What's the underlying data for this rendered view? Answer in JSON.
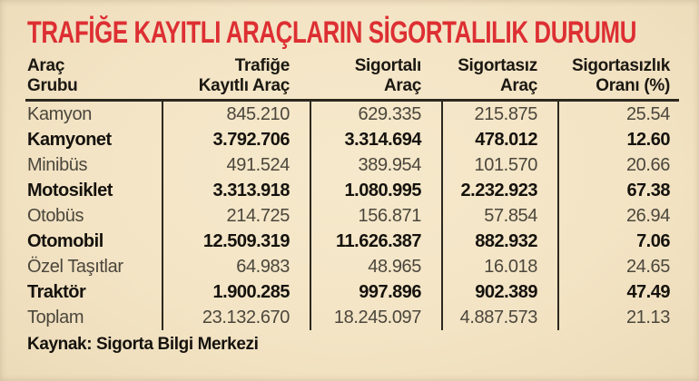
{
  "title": "TRAFİĞE KAYITLI ARAÇLARIN SİGORTALILIK DURUMU",
  "source": "Kaynak: Sigorta Bilgi Merkezi",
  "colors": {
    "background": "#f3e4c5",
    "title_red": "#dd2f33",
    "rule_dark": "#2c281f",
    "text_regular": "#4b463c",
    "text_strong": "#15120d"
  },
  "table": {
    "headers": [
      {
        "line1": "Araç",
        "line2": "Grubu"
      },
      {
        "line1": "Trafiğe",
        "line2": "Kayıtlı Araç"
      },
      {
        "line1": "Sigortalı",
        "line2": "Araç"
      },
      {
        "line1": "Sigortasız",
        "line2": "Araç"
      },
      {
        "line1": "Sigortasızlık",
        "line2": "Oranı (%)"
      }
    ],
    "rows": [
      {
        "group": "Kamyon",
        "registered": "845.210",
        "insured": "629.335",
        "uninsured": "215.875",
        "rate": "25.54",
        "bold": false
      },
      {
        "group": "Kamyonet",
        "registered": "3.792.706",
        "insured": "3.314.694",
        "uninsured": "478.012",
        "rate": "12.60",
        "bold": true
      },
      {
        "group": "Minibüs",
        "registered": "491.524",
        "insured": "389.954",
        "uninsured": "101.570",
        "rate": "20.66",
        "bold": false
      },
      {
        "group": "Motosiklet",
        "registered": "3.313.918",
        "insured": "1.080.995",
        "uninsured": "2.232.923",
        "rate": "67.38",
        "bold": true
      },
      {
        "group": "Otobüs",
        "registered": "214.725",
        "insured": "156.871",
        "uninsured": "57.854",
        "rate": "26.94",
        "bold": false
      },
      {
        "group": "Otomobil",
        "registered": "12.509.319",
        "insured": "11.626.387",
        "uninsured": "882.932",
        "rate": "7.06",
        "bold": true
      },
      {
        "group": "Özel Taşıtlar",
        "registered": "64.983",
        "insured": "48.965",
        "uninsured": "16.018",
        "rate": "24.65",
        "bold": false
      },
      {
        "group": "Traktör",
        "registered": "1.900.285",
        "insured": "997.896",
        "uninsured": "902.389",
        "rate": "47.49",
        "bold": true
      },
      {
        "group": "Toplam",
        "registered": "23.132.670",
        "insured": "18.245.097",
        "uninsured": "4.887.573",
        "rate": "21.13",
        "bold": false
      }
    ]
  },
  "chart_data": {
    "type": "table",
    "title": "TRAFİĞE KAYITLI ARAÇLARIN SİGORTALILIK DURUMU",
    "columns": [
      "Araç Grubu",
      "Trafiğe Kayıtlı Araç",
      "Sigortalı Araç",
      "Sigortasız Araç",
      "Sigortasızlık Oranı (%)"
    ],
    "rows": [
      [
        "Kamyon",
        845210,
        629335,
        215875,
        25.54
      ],
      [
        "Kamyonet",
        3792706,
        3314694,
        478012,
        12.6
      ],
      [
        "Minibüs",
        491524,
        389954,
        101570,
        20.66
      ],
      [
        "Motosiklet",
        3313918,
        1080995,
        2232923,
        67.38
      ],
      [
        "Otobüs",
        214725,
        156871,
        57854,
        26.94
      ],
      [
        "Otomobil",
        12509319,
        11626387,
        882932,
        7.06
      ],
      [
        "Özel Taşıtlar",
        64983,
        48965,
        16018,
        24.65
      ],
      [
        "Traktör",
        1900285,
        997896,
        902389,
        47.49
      ],
      [
        "Toplam",
        23132670,
        18245097,
        4887573,
        21.13
      ]
    ],
    "source": "Kaynak: Sigorta Bilgi Merkezi"
  }
}
